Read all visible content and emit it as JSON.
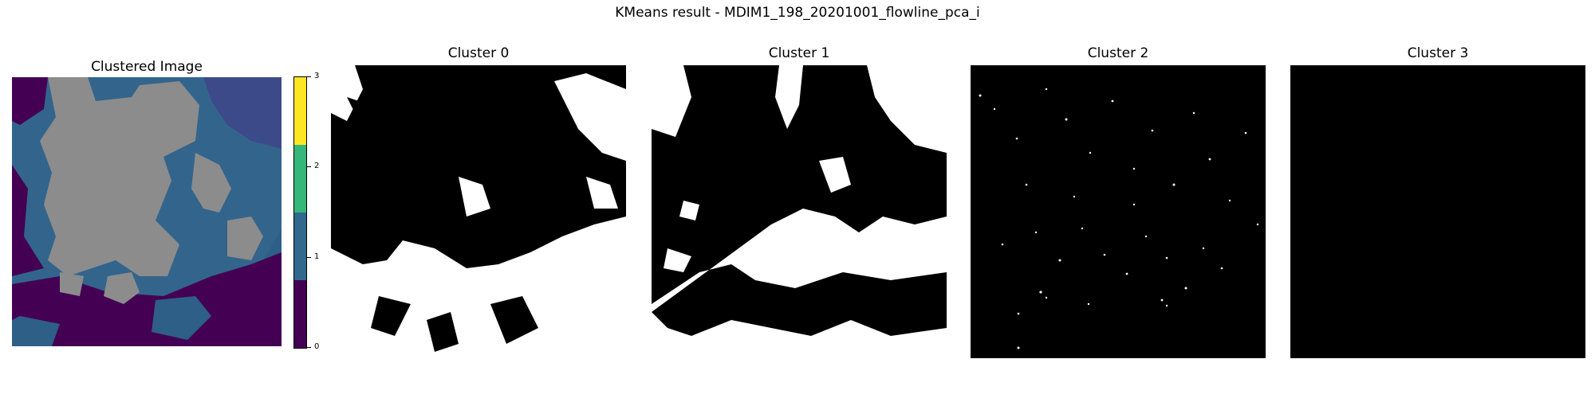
{
  "figure": {
    "suptitle": "KMeans result - MDIM1_198_20201001_flowline_pca_i"
  },
  "chart_data": [
    {
      "type": "heatmap",
      "title": "Clustered Image",
      "xlabel": "",
      "ylabel": "",
      "axes_visible": false,
      "clusters": [
        0,
        1,
        2,
        3
      ],
      "colormap": [
        "#440154",
        "#31688e",
        "#35b779",
        "#fde725"
      ],
      "nodata_color": "#8c8c8c",
      "colorbar": {
        "ticks": [
          "0",
          "1",
          "2",
          "3"
        ],
        "range": [
          0,
          3
        ]
      }
    },
    {
      "type": "heatmap",
      "title": "Cluster 0",
      "colors": [
        "#000000",
        "#ffffff"
      ],
      "axes_visible": false
    },
    {
      "type": "heatmap",
      "title": "Cluster 1",
      "colors": [
        "#000000",
        "#ffffff"
      ],
      "axes_visible": false
    },
    {
      "type": "heatmap",
      "title": "Cluster 2",
      "colors": [
        "#000000",
        "#ffffff"
      ],
      "axes_visible": false
    },
    {
      "type": "heatmap",
      "title": "Cluster 3",
      "colors": [
        "#000000",
        "#ffffff"
      ],
      "axes_visible": false
    }
  ]
}
